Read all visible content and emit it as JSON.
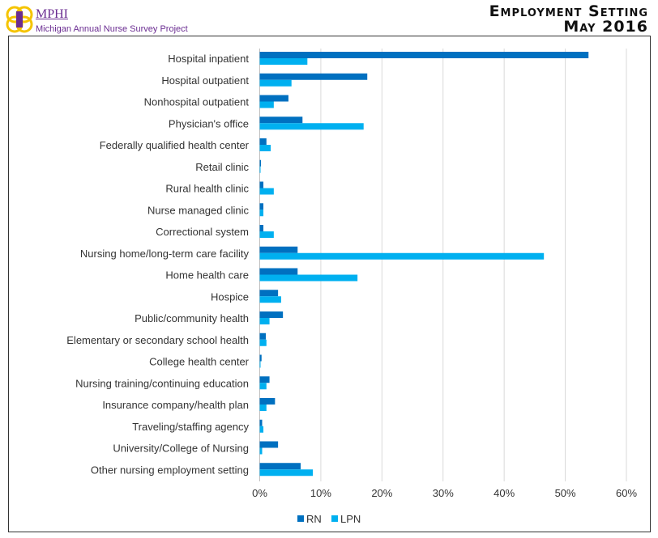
{
  "header": {
    "org": "MPHI",
    "project": "Michigan Annual Nurse Survey Project",
    "title": "Employment Setting",
    "subtitle": "May 2016"
  },
  "colors": {
    "RN": "#0070c0",
    "LPN": "#00b0f0",
    "brand": "#6a2c91",
    "logo": "#f5c400"
  },
  "chart_data": {
    "type": "bar",
    "orientation": "horizontal",
    "categories": [
      "Hospital inpatient",
      "Hospital outpatient",
      "Nonhospital outpatient",
      "Physician's office",
      "Federally qualified health center",
      "Retail clinic",
      "Rural health clinic",
      "Nurse managed clinic",
      "Correctional system",
      "Nursing home/long-term care facility",
      "Home health care",
      "Hospice",
      "Public/community health",
      "Elementary or secondary school health",
      "College health center",
      "Nursing training/continuing education",
      "Insurance company/health plan",
      "Traveling/staffing agency",
      "University/College of Nursing",
      "Other nursing employment setting"
    ],
    "series": [
      {
        "name": "RN",
        "values": [
          53.8,
          17.6,
          4.7,
          7.0,
          1.1,
          0.2,
          0.6,
          0.6,
          0.6,
          6.2,
          6.2,
          3.0,
          3.8,
          1.0,
          0.3,
          1.6,
          2.5,
          0.4,
          3.0,
          6.7
        ]
      },
      {
        "name": "LPN",
        "values": [
          7.8,
          5.2,
          2.3,
          17.0,
          1.8,
          0.1,
          2.3,
          0.6,
          2.3,
          46.5,
          16.0,
          3.5,
          1.6,
          1.1,
          0.1,
          1.1,
          1.1,
          0.6,
          0.4,
          8.7
        ]
      }
    ],
    "xlim": [
      0,
      60
    ],
    "xticks": [
      "0%",
      "10%",
      "20%",
      "30%",
      "40%",
      "50%",
      "60%"
    ],
    "grid": true,
    "legend": "bottom"
  }
}
